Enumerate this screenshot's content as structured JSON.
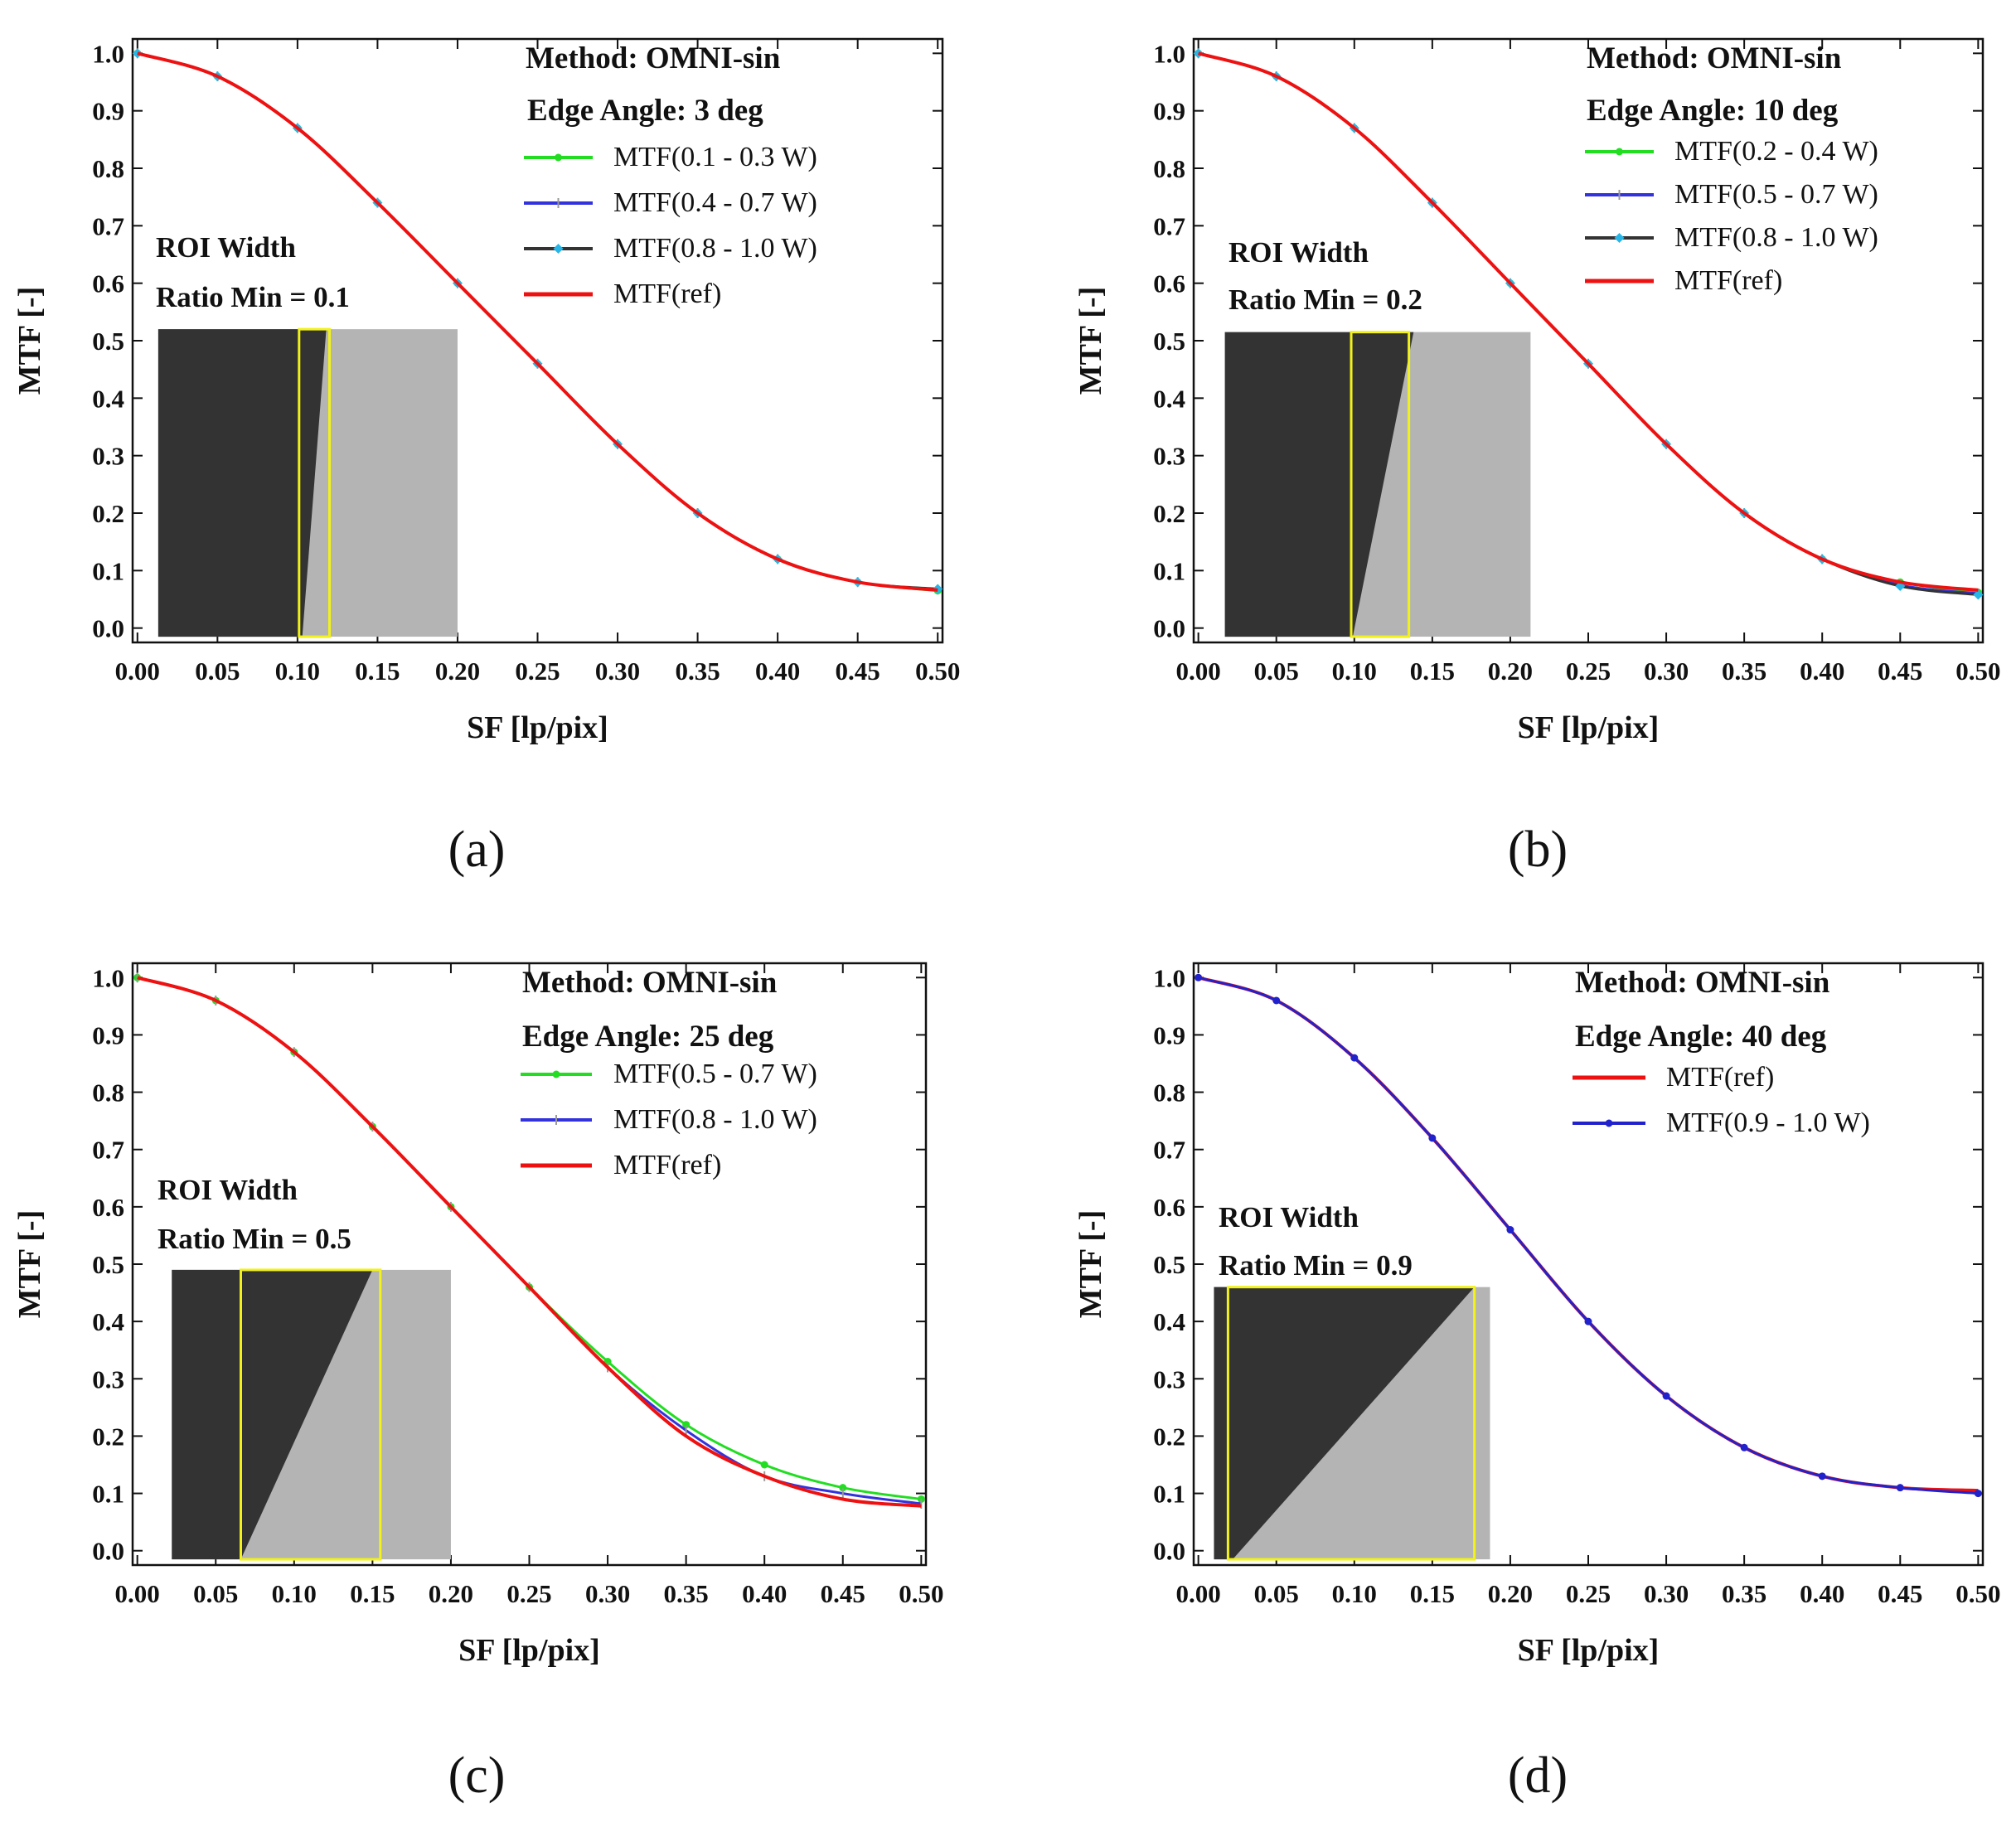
{
  "chart_data": [
    {
      "type": "line",
      "panel_label": "(a)",
      "method": "Method: OMNI-sin",
      "edge_angle": "Edge Angle: 3 deg",
      "roi_label_1": "ROI Width",
      "roi_label_2": "Ratio Min = 0.1",
      "xlabel": "SF [lp/pix]",
      "ylabel": "MTF [-]",
      "xlim": [
        0,
        0.5
      ],
      "ylim": [
        0,
        1.0
      ],
      "x_ticks": [
        "0.00",
        "0.05",
        "0.10",
        "0.15",
        "0.20",
        "0.25",
        "0.30",
        "0.35",
        "0.40",
        "0.45",
        "0.50"
      ],
      "y_ticks": [
        "0.0",
        "0.1",
        "0.2",
        "0.3",
        "0.4",
        "0.5",
        "0.6",
        "0.7",
        "0.8",
        "0.9",
        "1.0"
      ],
      "x": [
        0.0,
        0.05,
        0.1,
        0.15,
        0.2,
        0.25,
        0.3,
        0.35,
        0.4,
        0.45,
        0.5
      ],
      "series": [
        {
          "name": "MTF(0.1 - 0.3 W)",
          "color": "#22dd22",
          "marker": "dot",
          "values": [
            1.0,
            0.96,
            0.87,
            0.74,
            0.6,
            0.46,
            0.32,
            0.2,
            0.12,
            0.08,
            0.065
          ]
        },
        {
          "name": "MTF(0.4 - 0.7 W)",
          "color": "#3333dd",
          "marker": "tick",
          "values": [
            1.0,
            0.96,
            0.87,
            0.74,
            0.6,
            0.46,
            0.32,
            0.2,
            0.12,
            0.08,
            0.067
          ]
        },
        {
          "name": "MTF(0.8 - 1.0 W)",
          "color": "#333333",
          "marker": "diamond",
          "values": [
            1.0,
            0.96,
            0.87,
            0.74,
            0.6,
            0.46,
            0.32,
            0.2,
            0.12,
            0.08,
            0.068
          ]
        },
        {
          "name": "MTF(ref)",
          "color": "#ee1111",
          "marker": "none",
          "values": [
            1.0,
            0.96,
            0.87,
            0.74,
            0.6,
            0.46,
            0.32,
            0.2,
            0.12,
            0.08,
            0.066
          ]
        }
      ],
      "inset": {
        "x0": 0.013,
        "x1": 0.2,
        "y0": -0.015,
        "y1": 0.52,
        "edge_top": 0.118,
        "edge_bottom": 0.103,
        "roi_x0": 0.101,
        "roi_x1": 0.12
      }
    },
    {
      "type": "line",
      "panel_label": "(b)",
      "method": "Method: OMNI-sin",
      "edge_angle": "Edge Angle: 10 deg",
      "roi_label_1": "ROI Width",
      "roi_label_2": "Ratio Min = 0.2",
      "xlabel": "SF [lp/pix]",
      "ylabel": "MTF [-]",
      "xlim": [
        0,
        0.5
      ],
      "ylim": [
        0,
        1.0
      ],
      "x_ticks": [
        "0.00",
        "0.05",
        "0.10",
        "0.15",
        "0.20",
        "0.25",
        "0.30",
        "0.35",
        "0.40",
        "0.45",
        "0.50"
      ],
      "y_ticks": [
        "0.0",
        "0.1",
        "0.2",
        "0.3",
        "0.4",
        "0.5",
        "0.6",
        "0.7",
        "0.8",
        "0.9",
        "1.0"
      ],
      "x": [
        0.0,
        0.05,
        0.1,
        0.15,
        0.2,
        0.25,
        0.3,
        0.35,
        0.4,
        0.45,
        0.5
      ],
      "series": [
        {
          "name": "MTF(0.2 - 0.4 W)",
          "color": "#22dd22",
          "marker": "dot",
          "values": [
            1.0,
            0.96,
            0.87,
            0.74,
            0.6,
            0.46,
            0.32,
            0.2,
            0.12,
            0.08,
            0.062
          ]
        },
        {
          "name": "MTF(0.5 - 0.7 W)",
          "color": "#3333dd",
          "marker": "tick",
          "values": [
            1.0,
            0.96,
            0.87,
            0.74,
            0.6,
            0.46,
            0.32,
            0.2,
            0.12,
            0.075,
            0.06
          ]
        },
        {
          "name": "MTF(0.8 - 1.0 W)",
          "color": "#333333",
          "marker": "diamond",
          "values": [
            1.0,
            0.96,
            0.87,
            0.74,
            0.6,
            0.46,
            0.32,
            0.2,
            0.12,
            0.073,
            0.058
          ]
        },
        {
          "name": "MTF(ref)",
          "color": "#ee1111",
          "marker": "none",
          "values": [
            1.0,
            0.96,
            0.87,
            0.74,
            0.6,
            0.46,
            0.32,
            0.2,
            0.12,
            0.08,
            0.066
          ]
        }
      ],
      "inset": {
        "x0": 0.017,
        "x1": 0.213,
        "y0": -0.015,
        "y1": 0.515,
        "edge_top": 0.138,
        "edge_bottom": 0.099,
        "roi_x0": 0.098,
        "roi_x1": 0.135
      }
    },
    {
      "type": "line",
      "panel_label": "(c)",
      "method": "Method: OMNI-sin",
      "edge_angle": "Edge Angle: 25 deg",
      "roi_label_1": "ROI Width",
      "roi_label_2": "Ratio Min = 0.5",
      "xlabel": "SF [lp/pix]",
      "ylabel": "MTF [-]",
      "xlim": [
        0,
        0.5
      ],
      "ylim": [
        0,
        1.0
      ],
      "x_ticks": [
        "0.00",
        "0.05",
        "0.10",
        "0.15",
        "0.20",
        "0.25",
        "0.30",
        "0.35",
        "0.40",
        "0.45",
        "0.50"
      ],
      "y_ticks": [
        "0.0",
        "0.1",
        "0.2",
        "0.3",
        "0.4",
        "0.5",
        "0.6",
        "0.7",
        "0.8",
        "0.9",
        "1.0"
      ],
      "x": [
        0.0,
        0.05,
        0.1,
        0.15,
        0.2,
        0.25,
        0.3,
        0.35,
        0.4,
        0.45,
        0.5
      ],
      "series": [
        {
          "name": "MTF(0.5 - 0.7 W)",
          "color": "#22dd22",
          "marker": "dot",
          "values": [
            1.0,
            0.96,
            0.87,
            0.74,
            0.6,
            0.46,
            0.33,
            0.22,
            0.15,
            0.11,
            0.09
          ]
        },
        {
          "name": "MTF(0.8 - 1.0 W)",
          "color": "#3333dd",
          "marker": "tick",
          "values": [
            1.0,
            0.96,
            0.87,
            0.74,
            0.6,
            0.46,
            0.32,
            0.21,
            0.13,
            0.1,
            0.082
          ]
        },
        {
          "name": "MTF(ref)",
          "color": "#ee1111",
          "marker": "none",
          "values": [
            1.0,
            0.96,
            0.87,
            0.74,
            0.6,
            0.46,
            0.32,
            0.2,
            0.13,
            0.09,
            0.078
          ]
        }
      ],
      "inset": {
        "x0": 0.022,
        "x1": 0.2,
        "y0": -0.015,
        "y1": 0.49,
        "edge_top": 0.15,
        "edge_bottom": 0.066,
        "roi_x0": 0.066,
        "roi_x1": 0.155
      }
    },
    {
      "type": "line",
      "panel_label": "(d)",
      "method": "Method: OMNI-sin",
      "edge_angle": "Edge Angle: 40 deg",
      "roi_label_1": "ROI Width",
      "roi_label_2": "Ratio Min = 0.9",
      "xlabel": "SF [lp/pix]",
      "ylabel": "MTF [-]",
      "xlim": [
        0,
        0.5
      ],
      "ylim": [
        0,
        1.0
      ],
      "x_ticks": [
        "0.00",
        "0.05",
        "0.10",
        "0.15",
        "0.20",
        "0.25",
        "0.30",
        "0.35",
        "0.40",
        "0.45",
        "0.50"
      ],
      "y_ticks": [
        "0.0",
        "0.1",
        "0.2",
        "0.3",
        "0.4",
        "0.5",
        "0.6",
        "0.7",
        "0.8",
        "0.9",
        "1.0"
      ],
      "x": [
        0.0,
        0.05,
        0.1,
        0.15,
        0.2,
        0.25,
        0.3,
        0.35,
        0.4,
        0.45,
        0.5
      ],
      "series": [
        {
          "name": "MTF(ref)",
          "color": "#ee1111",
          "marker": "none",
          "values": [
            1.0,
            0.96,
            0.86,
            0.72,
            0.56,
            0.4,
            0.27,
            0.18,
            0.13,
            0.11,
            0.105
          ]
        },
        {
          "name": "MTF(0.9 - 1.0 W)",
          "color": "#2222cc",
          "marker": "dot",
          "values": [
            1.0,
            0.96,
            0.86,
            0.72,
            0.56,
            0.4,
            0.27,
            0.18,
            0.13,
            0.11,
            0.1
          ]
        }
      ],
      "inset": {
        "x0": 0.01,
        "x1": 0.187,
        "y0": -0.015,
        "y1": 0.46,
        "edge_top": 0.177,
        "edge_bottom": 0.022,
        "roi_x0": 0.019,
        "roi_x1": 0.177
      }
    }
  ]
}
